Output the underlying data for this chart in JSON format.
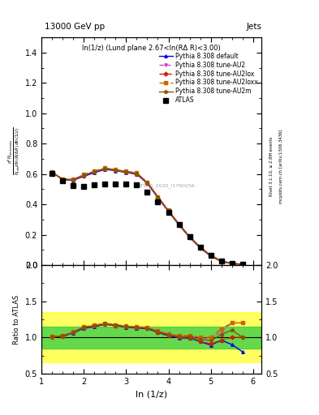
{
  "title": "13000 GeV pp",
  "title_right": "Jets",
  "inner_title": "ln(1/z) (Lund plane 2.67<ln(RΔ R)<3.00)",
  "xlabel": "ln (1/z)",
  "ylabel_ratio": "Ratio to ATLAS",
  "watermark": "ATLAS_2020_I1790256",
  "right_label": "Rivet 3.1.10, ≥ 2.8M events",
  "right_label2": "mcplots.cern.ch [arXiv:1306.3436]",
  "x_data": [
    1.25,
    1.5,
    1.75,
    2.0,
    2.25,
    2.5,
    2.75,
    3.0,
    3.25,
    3.5,
    3.75,
    4.0,
    4.25,
    4.5,
    4.75,
    5.0,
    5.25,
    5.5,
    5.75
  ],
  "atlas_y": [
    0.605,
    0.555,
    0.525,
    0.52,
    0.53,
    0.535,
    0.535,
    0.535,
    0.53,
    0.48,
    0.415,
    0.345,
    0.265,
    0.185,
    0.12,
    0.065,
    0.025,
    0.01,
    0.005
  ],
  "atlas_yerr": [
    0.03,
    0.02,
    0.02,
    0.02,
    0.02,
    0.02,
    0.02,
    0.02,
    0.02,
    0.02,
    0.02,
    0.02,
    0.015,
    0.015,
    0.01,
    0.008,
    0.005,
    0.003,
    0.002
  ],
  "default_y": [
    0.615,
    0.562,
    0.558,
    0.585,
    0.608,
    0.63,
    0.622,
    0.61,
    0.598,
    0.538,
    0.443,
    0.353,
    0.263,
    0.183,
    0.113,
    0.058,
    0.024,
    0.009,
    0.004
  ],
  "au2_y": [
    0.61,
    0.568,
    0.565,
    0.595,
    0.618,
    0.638,
    0.628,
    0.618,
    0.606,
    0.546,
    0.45,
    0.36,
    0.27,
    0.189,
    0.119,
    0.064,
    0.027,
    0.012,
    0.006
  ],
  "au2lox_y": [
    0.607,
    0.563,
    0.56,
    0.59,
    0.612,
    0.633,
    0.623,
    0.612,
    0.6,
    0.54,
    0.445,
    0.355,
    0.265,
    0.184,
    0.114,
    0.059,
    0.024,
    0.01,
    0.005
  ],
  "au2loxx_y": [
    0.612,
    0.568,
    0.565,
    0.596,
    0.618,
    0.639,
    0.629,
    0.618,
    0.607,
    0.547,
    0.451,
    0.361,
    0.271,
    0.19,
    0.12,
    0.065,
    0.028,
    0.012,
    0.006
  ],
  "au2m_y": [
    0.61,
    0.566,
    0.562,
    0.592,
    0.615,
    0.636,
    0.626,
    0.615,
    0.603,
    0.543,
    0.448,
    0.358,
    0.268,
    0.187,
    0.117,
    0.062,
    0.026,
    0.011,
    0.005
  ],
  "color_default": "#0000ee",
  "color_au2": "#cc44cc",
  "color_au2lox": "#cc2200",
  "color_au2loxx": "#cc6600",
  "color_au2m": "#885500",
  "ylim_main": [
    0.0,
    1.5
  ],
  "ylim_ratio": [
    0.5,
    2.0
  ],
  "xlim": [
    1.0,
    6.2
  ],
  "band_green": 0.15,
  "band_yellow": 0.35
}
